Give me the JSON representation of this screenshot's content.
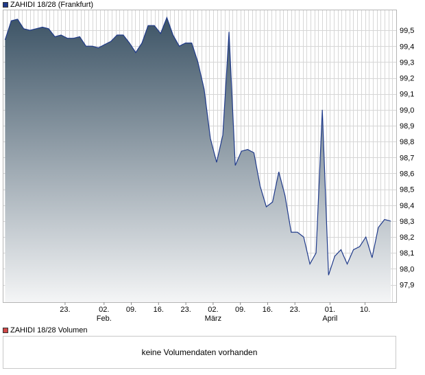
{
  "chart_data": {
    "type": "area",
    "title": "ZAHIDI 18/28 (Frankfurt)",
    "series": [
      {
        "name": "ZAHIDI 18/28 (Frankfurt)",
        "color": "#1f3a8a"
      }
    ],
    "ylim": [
      97.79,
      99.63
    ],
    "y_ticks": [
      "97,9",
      "98,0",
      "98,1",
      "98,2",
      "98,3",
      "98,4",
      "98,5",
      "98,6",
      "98,7",
      "98,8",
      "98,9",
      "99,0",
      "99,1",
      "99,2",
      "99,3",
      "99,4",
      "99,5"
    ],
    "x_day_labels": [
      {
        "day": 6,
        "label": "23."
      },
      {
        "day": 16,
        "label": "02."
      },
      {
        "day": 23,
        "label": "09."
      },
      {
        "day": 30,
        "label": "16."
      },
      {
        "day": 37,
        "label": "23."
      },
      {
        "day": 44,
        "label": "02."
      },
      {
        "day": 51,
        "label": "09."
      },
      {
        "day": 58,
        "label": "16."
      },
      {
        "day": 65,
        "label": "23."
      },
      {
        "day": 74,
        "label": "01."
      },
      {
        "day": 83,
        "label": "10."
      }
    ],
    "x_month_labels": [
      {
        "day": 16,
        "label": "Feb."
      },
      {
        "day": 44,
        "label": "März"
      },
      {
        "day": 74,
        "label": "April"
      }
    ],
    "points": [
      [
        0,
        99.44
      ],
      [
        1,
        99.56
      ],
      [
        2,
        99.57
      ],
      [
        3,
        99.51
      ],
      [
        4,
        99.5
      ],
      [
        5,
        99.51
      ],
      [
        6,
        99.52
      ],
      [
        7,
        99.51
      ],
      [
        8,
        99.46
      ],
      [
        9,
        99.47
      ],
      [
        10,
        99.45
      ],
      [
        11,
        99.45
      ],
      [
        12,
        99.46
      ],
      [
        13,
        99.4
      ],
      [
        14,
        99.4
      ],
      [
        15,
        99.39
      ],
      [
        16,
        99.41
      ],
      [
        17,
        99.43
      ],
      [
        18,
        99.47
      ],
      [
        19,
        99.47
      ],
      [
        20,
        99.42
      ],
      [
        21,
        99.36
      ],
      [
        22,
        99.42
      ],
      [
        23,
        99.53
      ],
      [
        24,
        99.53
      ],
      [
        25,
        99.48
      ],
      [
        26,
        99.58
      ],
      [
        27,
        99.47
      ],
      [
        28,
        99.4
      ],
      [
        29,
        99.42
      ],
      [
        30,
        99.42
      ],
      [
        31,
        99.3
      ],
      [
        32,
        99.13
      ],
      [
        33,
        98.82
      ],
      [
        34,
        98.67
      ],
      [
        35,
        98.84
      ],
      [
        36,
        99.49
      ],
      [
        37,
        98.65
      ],
      [
        38,
        98.74
      ],
      [
        39,
        98.75
      ],
      [
        40,
        98.73
      ],
      [
        41,
        98.52
      ],
      [
        42,
        98.39
      ],
      [
        43,
        98.42
      ],
      [
        44,
        98.61
      ],
      [
        45,
        98.46
      ],
      [
        46,
        98.23
      ],
      [
        47,
        98.23
      ],
      [
        48,
        98.2
      ],
      [
        49,
        98.03
      ],
      [
        50,
        98.1
      ],
      [
        51,
        99.0
      ],
      [
        52,
        97.96
      ],
      [
        53,
        98.08
      ],
      [
        54,
        98.12
      ],
      [
        55,
        98.03
      ],
      [
        56,
        98.12
      ],
      [
        57,
        98.14
      ],
      [
        58,
        98.2
      ],
      [
        59,
        98.07
      ],
      [
        60,
        98.26
      ],
      [
        61,
        98.31
      ],
      [
        62,
        98.3
      ]
    ],
    "grid": true,
    "legend_position": "top-left"
  },
  "volume": {
    "title": "ZAHIDI 18/28 Volumen",
    "message": "keine Volumendaten vorhanden"
  },
  "colors": {
    "line": "#1f3a8a",
    "fill_top": "#3d5466",
    "fill_bottom": "#f4f5f6",
    "grid": "#d6d6d6",
    "vol_swatch": "#d04848"
  }
}
